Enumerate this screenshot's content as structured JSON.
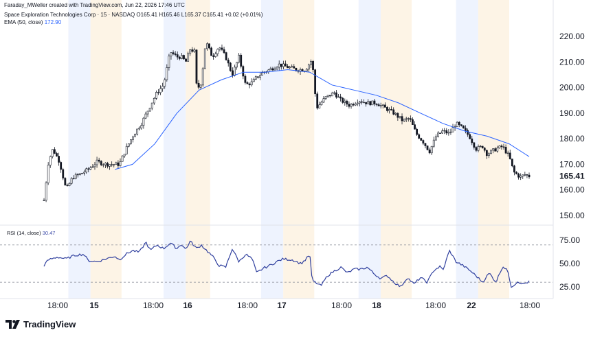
{
  "header": {
    "credit": "Faraday_MWeller created with TradingView.com, Jun 22, 2026 17:46 UTC",
    "symbol_line": "Space Exploration Technologies Corp · 15 · NASDAQ",
    "ohlc": "O165.41 H165.46 L165.37 C165.41 +0.02 (+0.01%)",
    "ema_label": "EMA (50, close)",
    "ema_value": "172.90"
  },
  "rsi": {
    "label": "RSI (14, close)",
    "value": "30.47",
    "levels": [
      75,
      50,
      25
    ],
    "upper_band": 70,
    "lower_band": 30
  },
  "brand": {
    "name": "TradingView"
  },
  "colors": {
    "up": "#131722",
    "down": "#131722",
    "ema": "#2962ff",
    "rsi": "#2f3f9e",
    "session_blue": "#eef3fe",
    "session_orange": "#fdf4e6"
  },
  "chart_data": [
    {
      "type": "candlestick",
      "y_axis": [
        "220.00",
        "210.00",
        "200.00",
        "190.00",
        "180.00",
        "170.00",
        "160.00",
        "150.00"
      ],
      "ylim": [
        147,
        228
      ],
      "last_price": "165.41",
      "x_ticks": [
        {
          "label": "18:00",
          "bold": false
        },
        {
          "label": "15",
          "bold": true
        },
        {
          "label": "18:00",
          "bold": false
        },
        {
          "label": "16",
          "bold": true
        },
        {
          "label": "18:00",
          "bold": false
        },
        {
          "label": "17",
          "bold": true
        },
        {
          "label": "18:00",
          "bold": false
        },
        {
          "label": "18",
          "bold": true
        },
        {
          "label": "18:00",
          "bold": false
        },
        {
          "label": "22",
          "bold": true
        },
        {
          "label": "18:00",
          "bold": false
        }
      ],
      "close_path": [
        [
          0,
          156
        ],
        [
          0.01,
          171
        ],
        [
          0.02,
          176
        ],
        [
          0.035,
          171
        ],
        [
          0.05,
          160
        ],
        [
          0.065,
          165
        ],
        [
          0.08,
          166
        ],
        [
          0.1,
          168
        ],
        [
          0.12,
          171
        ],
        [
          0.14,
          170
        ],
        [
          0.16,
          170
        ],
        [
          0.17,
          170
        ],
        [
          0.185,
          176
        ],
        [
          0.2,
          181
        ],
        [
          0.22,
          186
        ],
        [
          0.24,
          193
        ],
        [
          0.255,
          198
        ],
        [
          0.27,
          201
        ],
        [
          0.285,
          214
        ],
        [
          0.3,
          212
        ],
        [
          0.31,
          212
        ],
        [
          0.32,
          210
        ],
        [
          0.33,
          215
        ],
        [
          0.34,
          214
        ],
        [
          0.345,
          199
        ],
        [
          0.355,
          202
        ],
        [
          0.365,
          218
        ],
        [
          0.38,
          212
        ],
        [
          0.395,
          216
        ],
        [
          0.41,
          212
        ],
        [
          0.425,
          205
        ],
        [
          0.44,
          212
        ],
        [
          0.455,
          201
        ],
        [
          0.47,
          202
        ],
        [
          0.48,
          204
        ],
        [
          0.495,
          206
        ],
        [
          0.51,
          207
        ],
        [
          0.53,
          209
        ],
        [
          0.55,
          208
        ],
        [
          0.57,
          207
        ],
        [
          0.59,
          207
        ],
        [
          0.605,
          211
        ],
        [
          0.615,
          192
        ],
        [
          0.635,
          196
        ],
        [
          0.655,
          198
        ],
        [
          0.67,
          195
        ],
        [
          0.69,
          193
        ],
        [
          0.71,
          195
        ],
        [
          0.73,
          194
        ],
        [
          0.75,
          194
        ],
        [
          0.77,
          192
        ],
        [
          0.79,
          190
        ],
        [
          0.81,
          187
        ],
        [
          0.825,
          188
        ],
        [
          0.84,
          182
        ],
        [
          0.855,
          179
        ],
        [
          0.87,
          175
        ],
        [
          0.885,
          181
        ],
        [
          0.9,
          183
        ],
        [
          0.915,
          182
        ],
        [
          0.93,
          186
        ],
        [
          0.945,
          184
        ],
        [
          0.96,
          181
        ],
        [
          0.975,
          176
        ],
        [
          0.99,
          177
        ],
        [
          1.0,
          174
        ],
        [
          1.02,
          176
        ],
        [
          1.035,
          177
        ],
        [
          1.05,
          173
        ],
        [
          1.06,
          167
        ],
        [
          1.075,
          165
        ],
        [
          1.085,
          166
        ],
        [
          1.095,
          165.4
        ]
      ],
      "ema_path": [
        [
          0.16,
          168
        ],
        [
          0.2,
          170
        ],
        [
          0.25,
          178
        ],
        [
          0.3,
          190
        ],
        [
          0.35,
          199
        ],
        [
          0.4,
          203
        ],
        [
          0.45,
          206
        ],
        [
          0.5,
          206
        ],
        [
          0.55,
          207
        ],
        [
          0.6,
          206
        ],
        [
          0.65,
          201
        ],
        [
          0.7,
          199
        ],
        [
          0.75,
          197
        ],
        [
          0.8,
          194
        ],
        [
          0.85,
          190
        ],
        [
          0.9,
          186
        ],
        [
          0.95,
          183
        ],
        [
          1.0,
          181
        ],
        [
          1.05,
          178
        ],
        [
          1.095,
          173
        ]
      ],
      "sessions": [
        {
          "start": 0.055,
          "end": 0.105,
          "color": "blue"
        },
        {
          "start": 0.105,
          "end": 0.175,
          "color": "orange"
        },
        {
          "start": 0.27,
          "end": 0.32,
          "color": "blue"
        },
        {
          "start": 0.32,
          "end": 0.375,
          "color": "orange"
        },
        {
          "start": 0.49,
          "end": 0.54,
          "color": "blue"
        },
        {
          "start": 0.54,
          "end": 0.61,
          "color": "orange"
        },
        {
          "start": 0.71,
          "end": 0.76,
          "color": "blue"
        },
        {
          "start": 0.76,
          "end": 0.83,
          "color": "orange"
        },
        {
          "start": 0.93,
          "end": 0.98,
          "color": "blue"
        },
        {
          "start": 0.98,
          "end": 1.05,
          "color": "orange"
        }
      ]
    },
    {
      "type": "line",
      "name": "RSI (14, close)",
      "ylim": [
        17,
        82
      ],
      "levels": [
        75,
        50,
        25
      ],
      "bands": [
        70,
        30
      ],
      "path": [
        [
          0.0,
          48
        ],
        [
          0.01,
          54
        ],
        [
          0.03,
          57
        ],
        [
          0.05,
          55
        ],
        [
          0.07,
          59
        ],
        [
          0.09,
          60
        ],
        [
          0.1,
          53
        ],
        [
          0.12,
          52
        ],
        [
          0.14,
          55
        ],
        [
          0.16,
          58
        ],
        [
          0.17,
          54
        ],
        [
          0.185,
          60
        ],
        [
          0.2,
          64
        ],
        [
          0.215,
          62
        ],
        [
          0.23,
          73
        ],
        [
          0.24,
          64
        ],
        [
          0.255,
          70
        ],
        [
          0.27,
          66
        ],
        [
          0.285,
          72
        ],
        [
          0.3,
          66
        ],
        [
          0.31,
          71
        ],
        [
          0.32,
          65
        ],
        [
          0.33,
          74
        ],
        [
          0.345,
          66
        ],
        [
          0.355,
          70
        ],
        [
          0.365,
          65
        ],
        [
          0.38,
          58
        ],
        [
          0.395,
          48
        ],
        [
          0.41,
          46
        ],
        [
          0.425,
          66
        ],
        [
          0.44,
          52
        ],
        [
          0.455,
          60
        ],
        [
          0.47,
          55
        ],
        [
          0.48,
          40
        ],
        [
          0.495,
          45
        ],
        [
          0.51,
          48
        ],
        [
          0.525,
          52
        ],
        [
          0.54,
          55
        ],
        [
          0.56,
          54
        ],
        [
          0.58,
          50
        ],
        [
          0.59,
          54
        ],
        [
          0.6,
          60
        ],
        [
          0.605,
          32
        ],
        [
          0.625,
          26
        ],
        [
          0.64,
          37
        ],
        [
          0.655,
          42
        ],
        [
          0.67,
          46
        ],
        [
          0.685,
          40
        ],
        [
          0.7,
          44
        ],
        [
          0.715,
          44
        ],
        [
          0.73,
          46
        ],
        [
          0.745,
          39
        ],
        [
          0.76,
          34
        ],
        [
          0.775,
          37
        ],
        [
          0.79,
          30
        ],
        [
          0.805,
          25
        ],
        [
          0.82,
          35
        ],
        [
          0.835,
          28
        ],
        [
          0.85,
          35
        ],
        [
          0.865,
          30
        ],
        [
          0.88,
          43
        ],
        [
          0.895,
          47
        ],
        [
          0.9,
          42
        ],
        [
          0.915,
          64
        ],
        [
          0.93,
          52
        ],
        [
          0.945,
          48
        ],
        [
          0.96,
          43
        ],
        [
          0.975,
          37
        ],
        [
          0.99,
          30
        ],
        [
          1.005,
          40
        ],
        [
          1.02,
          30
        ],
        [
          1.035,
          47
        ],
        [
          1.045,
          44
        ],
        [
          1.055,
          25
        ],
        [
          1.07,
          31
        ],
        [
          1.08,
          28
        ],
        [
          1.095,
          30.5
        ]
      ]
    }
  ]
}
